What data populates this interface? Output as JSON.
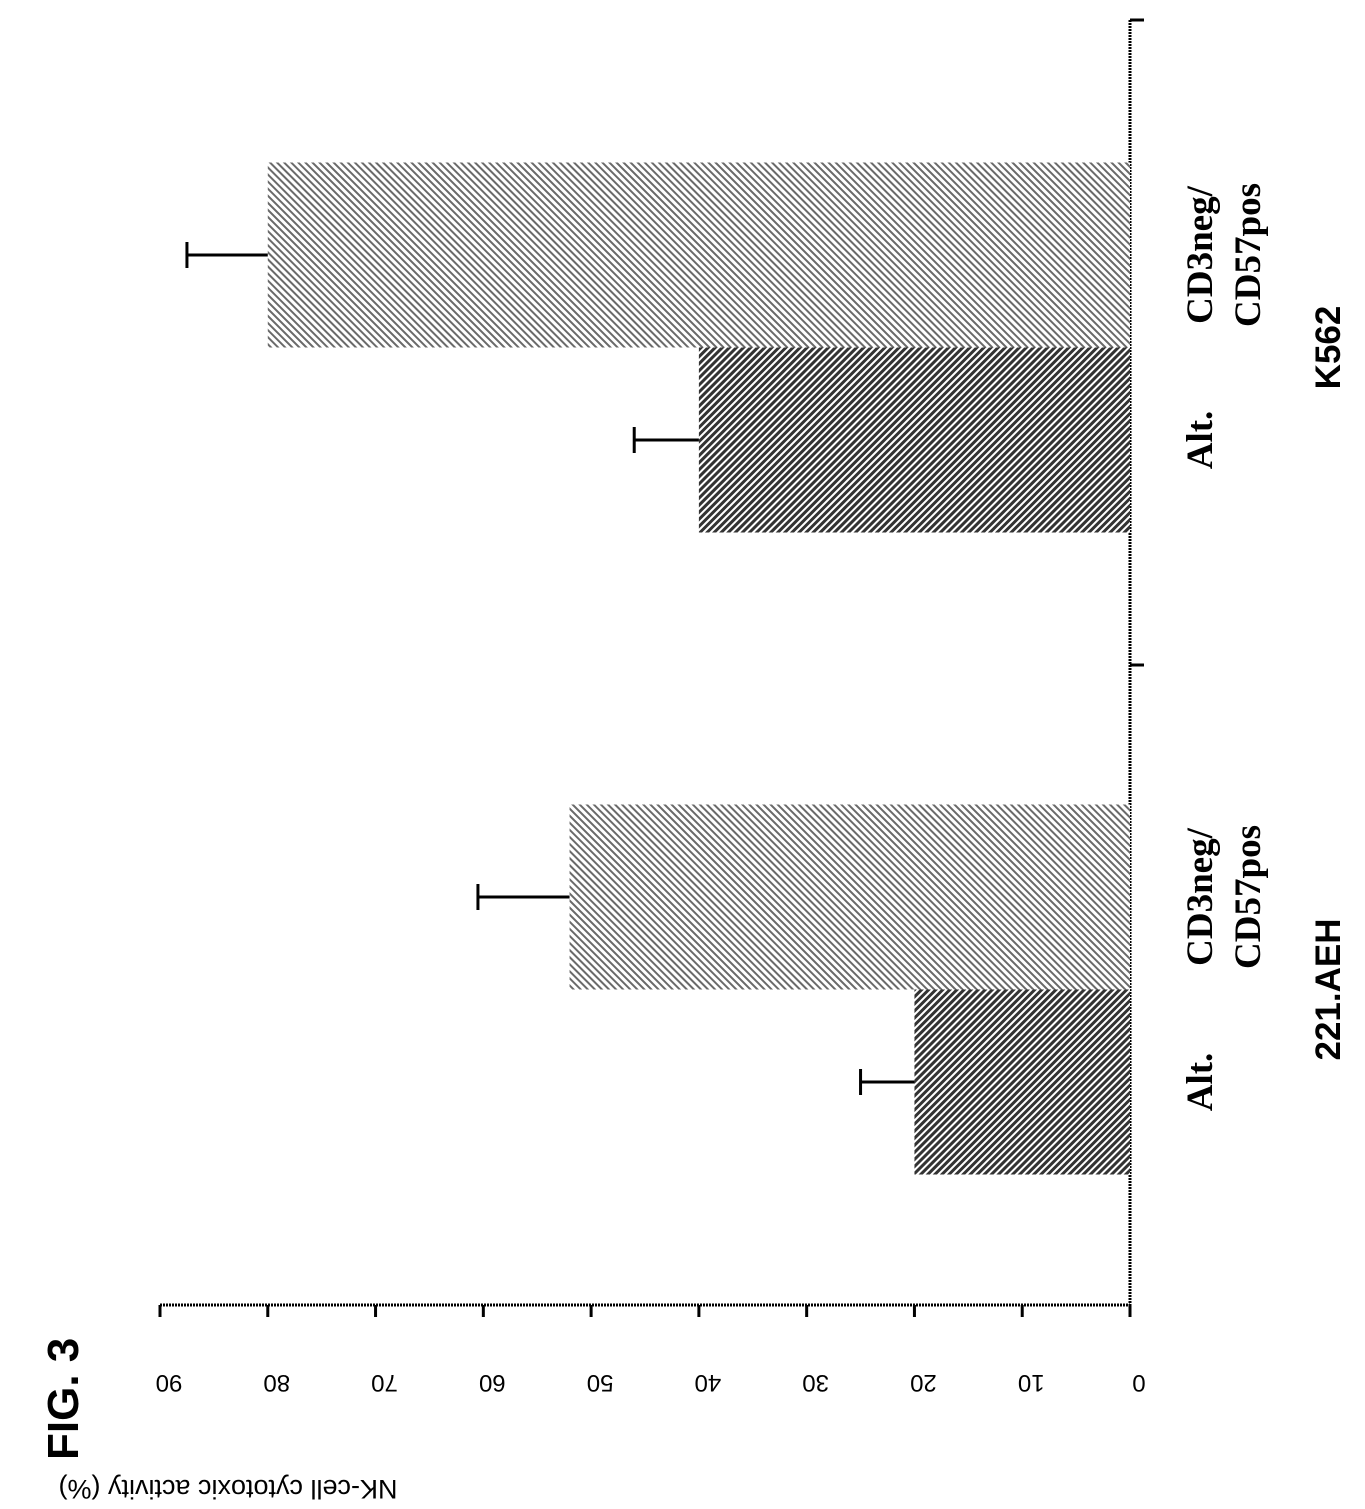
{
  "figure_label": "FIG. 3",
  "chart_data": {
    "type": "bar",
    "orientation": "rotated-90",
    "ylabel": "NK-cell cytotoxic activity (%)",
    "xlabel": "",
    "ylim": [
      0,
      90
    ],
    "yticks": [
      0,
      10,
      20,
      30,
      40,
      50,
      60,
      70,
      80,
      90
    ],
    "groups": [
      {
        "name": "221.AEH",
        "bars": [
          {
            "category": "Alt.",
            "value": 20,
            "error": 5,
            "pattern": "dense-hatch"
          },
          {
            "category_lines": [
              "CD3neg/",
              "CD57pos"
            ],
            "value": 52,
            "error": 8.5,
            "pattern": "light-hatch"
          }
        ]
      },
      {
        "name": "K562",
        "bars": [
          {
            "category": "Alt.",
            "value": 40,
            "error": 6,
            "pattern": "dense-hatch"
          },
          {
            "category_lines": [
              "CD3neg/",
              "CD57pos"
            ],
            "value": 80,
            "error": 7.5,
            "pattern": "light-hatch"
          }
        ]
      }
    ],
    "grid": false,
    "legend": "none"
  }
}
